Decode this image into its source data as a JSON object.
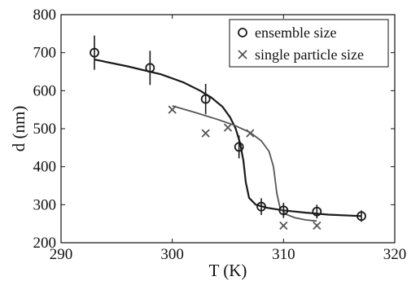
{
  "chart_data": {
    "type": "scatter",
    "title": "",
    "xlabel": "T (K)",
    "ylabel": "d (nm)",
    "xlim": [
      290,
      320
    ],
    "ylim": [
      200,
      800
    ],
    "xticks": [
      290,
      300,
      310,
      320
    ],
    "yticks": [
      200,
      300,
      400,
      500,
      600,
      700,
      800
    ],
    "grid": false,
    "legend_position": "top-right",
    "series": [
      {
        "name": "ensemble size",
        "marker": "circle",
        "color": "#1a1a1a",
        "points": [
          {
            "x": 293,
            "y": 700,
            "err": 45
          },
          {
            "x": 298,
            "y": 660,
            "err": 45
          },
          {
            "x": 303,
            "y": 578,
            "err": 40
          },
          {
            "x": 306,
            "y": 452,
            "err": 30
          },
          {
            "x": 308,
            "y": 295,
            "err": 22
          },
          {
            "x": 310,
            "y": 285,
            "err": 20
          },
          {
            "x": 313,
            "y": 282,
            "err": 18
          },
          {
            "x": 317,
            "y": 270,
            "err": 15
          }
        ],
        "fit_curve": [
          [
            293,
            682
          ],
          [
            296,
            664
          ],
          [
            299,
            643
          ],
          [
            301,
            622
          ],
          [
            302.5,
            600
          ],
          [
            303.5,
            582
          ],
          [
            304.5,
            558
          ],
          [
            305.2,
            530
          ],
          [
            305.7,
            500
          ],
          [
            306.1,
            462
          ],
          [
            306.4,
            415
          ],
          [
            306.6,
            360
          ],
          [
            306.9,
            318
          ],
          [
            307.5,
            300
          ],
          [
            308.5,
            292
          ],
          [
            310,
            285
          ],
          [
            312,
            279
          ],
          [
            314,
            274
          ],
          [
            317,
            270
          ]
        ]
      },
      {
        "name": "single particle size",
        "marker": "x",
        "color": "#555555",
        "points": [
          {
            "x": 300,
            "y": 550
          },
          {
            "x": 303,
            "y": 488
          },
          {
            "x": 305,
            "y": 503
          },
          {
            "x": 307,
            "y": 488
          },
          {
            "x": 310,
            "y": 245
          },
          {
            "x": 313,
            "y": 245
          }
        ],
        "fit_curve": [
          [
            300,
            560
          ],
          [
            302,
            543
          ],
          [
            304,
            525
          ],
          [
            305.5,
            510
          ],
          [
            307,
            490
          ],
          [
            308,
            468
          ],
          [
            308.7,
            440
          ],
          [
            309.1,
            400
          ],
          [
            309.4,
            330
          ],
          [
            309.7,
            290
          ],
          [
            310.2,
            275
          ],
          [
            311,
            266
          ],
          [
            312,
            260
          ],
          [
            313,
            257
          ]
        ]
      }
    ],
    "colors": {
      "axis": "#111111",
      "ensemble": "#1a1a1a",
      "single": "#555555"
    }
  }
}
